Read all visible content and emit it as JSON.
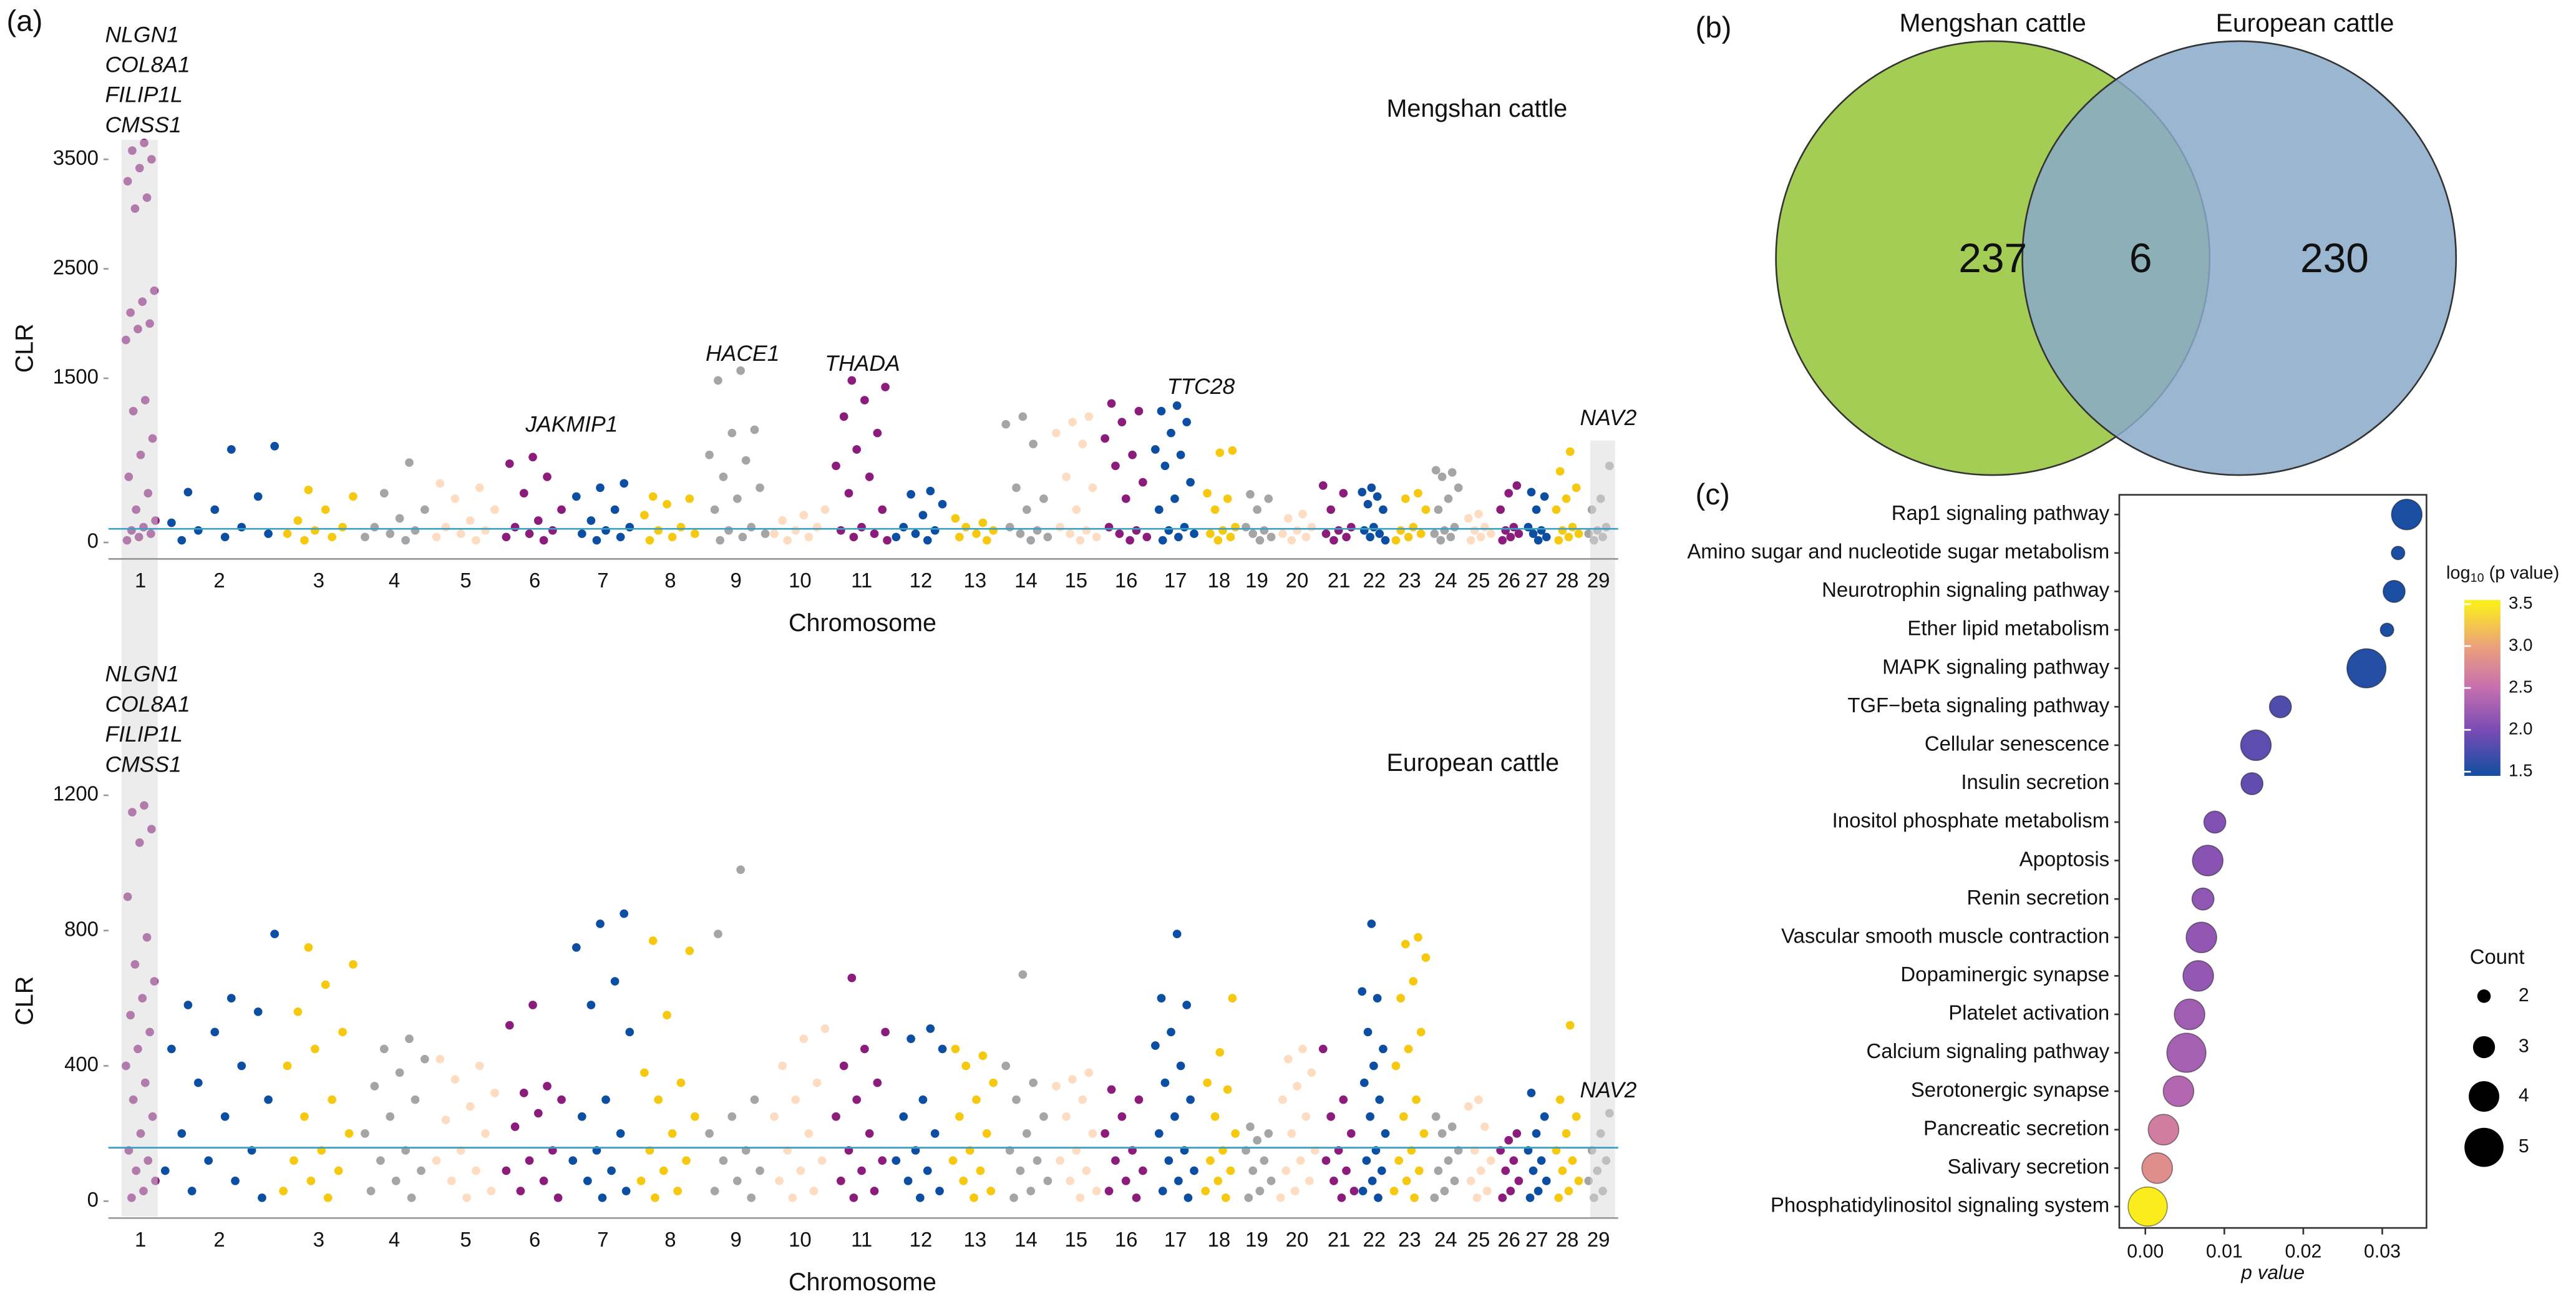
{
  "panel_labels": [
    "(a)",
    "(b)",
    "(c)"
  ],
  "chart_data": [
    {
      "type": "manhattan",
      "title": "Mengshan cattle",
      "xlabel": "Chromosome",
      "ylabel": "CLR",
      "categories": [
        "1",
        "2",
        "3",
        "4",
        "5",
        "6",
        "7",
        "8",
        "9",
        "10",
        "11",
        "12",
        "13",
        "14",
        "15",
        "16",
        "17",
        "18",
        "19",
        "20",
        "21",
        "22",
        "23",
        "24",
        "25",
        "26",
        "27",
        "28",
        "29"
      ],
      "palette": [
        "#8b1c7c",
        "#0b4ea2",
        "#f6c80f",
        "#a5a5a5",
        "#fddcc1"
      ],
      "values": [
        [
          3650,
          3580,
          3500,
          3420,
          3300,
          3150,
          3050,
          2300,
          2200,
          2100,
          2000,
          1950,
          1850,
          1300,
          1200,
          950,
          800,
          600,
          450,
          300,
          200,
          140,
          110,
          80,
          50,
          20
        ],
        [
          880,
          850,
          460,
          420,
          300,
          180,
          140,
          110,
          80,
          50,
          20
        ],
        [
          480,
          420,
          300,
          200,
          140,
          110,
          80,
          50,
          20
        ],
        [
          730,
          450,
          300,
          220,
          140,
          110,
          80,
          50,
          20
        ],
        [
          540,
          500,
          400,
          300,
          200,
          140,
          110,
          80,
          50,
          20
        ],
        [
          780,
          720,
          600,
          450,
          300,
          200,
          140,
          110,
          80,
          50,
          20
        ],
        [
          540,
          500,
          420,
          300,
          200,
          140,
          110,
          80,
          50,
          20
        ],
        [
          420,
          400,
          350,
          250,
          140,
          110,
          80,
          50,
          20
        ],
        [
          1570,
          1480,
          1030,
          1000,
          800,
          750,
          600,
          500,
          400,
          300,
          140,
          110,
          80,
          50,
          20
        ],
        [
          300,
          250,
          200,
          140,
          110,
          80,
          50,
          20
        ],
        [
          1480,
          1420,
          1300,
          1150,
          1000,
          850,
          700,
          600,
          450,
          300,
          140,
          110,
          80,
          50,
          20
        ],
        [
          470,
          440,
          350,
          250,
          140,
          110,
          80,
          50,
          20
        ],
        [
          220,
          180,
          140,
          110,
          80,
          50,
          20
        ],
        [
          1150,
          1080,
          900,
          500,
          400,
          300,
          140,
          110,
          80,
          50,
          20
        ],
        [
          1150,
          1100,
          1000,
          900,
          600,
          500,
          300,
          140,
          110,
          80,
          50,
          20
        ],
        [
          1270,
          1200,
          1100,
          950,
          800,
          700,
          550,
          400,
          140,
          110,
          80,
          50,
          20
        ],
        [
          1250,
          1200,
          1100,
          1000,
          850,
          800,
          700,
          550,
          400,
          300,
          140,
          110,
          80,
          50,
          20
        ],
        [
          840,
          820,
          450,
          400,
          300,
          140,
          110,
          80,
          50,
          20
        ],
        [
          440,
          400,
          300,
          140,
          110,
          80,
          50,
          20
        ],
        [
          260,
          220,
          140,
          110,
          80,
          50,
          20
        ],
        [
          520,
          450,
          300,
          140,
          110,
          80,
          50,
          20
        ],
        [
          500,
          460,
          420,
          350,
          300,
          140,
          110,
          80,
          50,
          20
        ],
        [
          450,
          400,
          300,
          140,
          110,
          80,
          50,
          20
        ],
        [
          660,
          640,
          600,
          500,
          400,
          300,
          140,
          110,
          80,
          50,
          20
        ],
        [
          260,
          220,
          140,
          110,
          80,
          50,
          20
        ],
        [
          520,
          450,
          300,
          140,
          110,
          80,
          50,
          20
        ],
        [
          460,
          420,
          300,
          140,
          110,
          80,
          50,
          20
        ],
        [
          830,
          650,
          500,
          400,
          300,
          140,
          110,
          80,
          50,
          20
        ],
        [
          700,
          400,
          300,
          140,
          110,
          80,
          50,
          20
        ]
      ],
      "ylim": [
        -150,
        3700
      ],
      "yticks": [
        0,
        1500,
        2500,
        3500
      ],
      "threshold": 125,
      "threshold_color": "#3a9fc0",
      "annotations": [
        {
          "lines": [
            "NLGN1",
            "COL8A1",
            "FILIP1L",
            "CMSS1"
          ]
        },
        {
          "lines": [
            "JAKMIP1"
          ]
        },
        {
          "lines": [
            "HACE1"
          ]
        },
        {
          "lines": [
            "THADA"
          ]
        },
        {
          "lines": [
            "TTC28"
          ]
        },
        {
          "lines": [
            "NAV2"
          ]
        }
      ]
    },
    {
      "type": "manhattan",
      "title": "European cattle",
      "xlabel": "Chromosome",
      "ylabel": "CLR",
      "categories": [
        "1",
        "2",
        "3",
        "4",
        "5",
        "6",
        "7",
        "8",
        "9",
        "10",
        "11",
        "12",
        "13",
        "14",
        "15",
        "16",
        "17",
        "18",
        "19",
        "20",
        "21",
        "22",
        "23",
        "24",
        "25",
        "26",
        "27",
        "28",
        "29"
      ],
      "palette": [
        "#8b1c7c",
        "#0b4ea2",
        "#f6c80f",
        "#a5a5a5",
        "#fddcc1"
      ],
      "values": [
        [
          1170,
          1150,
          1100,
          1060,
          900,
          780,
          700,
          650,
          600,
          550,
          500,
          450,
          400,
          350,
          300,
          250,
          200,
          150,
          120,
          90,
          60,
          30,
          10
        ],
        [
          790,
          600,
          580,
          560,
          500,
          450,
          400,
          350,
          300,
          250,
          200,
          150,
          120,
          90,
          60,
          30,
          10
        ],
        [
          750,
          700,
          640,
          560,
          500,
          450,
          400,
          300,
          250,
          200,
          150,
          120,
          90,
          60,
          30,
          10
        ],
        [
          480,
          450,
          420,
          380,
          340,
          300,
          250,
          200,
          150,
          120,
          90,
          60,
          30,
          10
        ],
        [
          420,
          400,
          360,
          320,
          280,
          240,
          200,
          150,
          120,
          90,
          60,
          30,
          10
        ],
        [
          580,
          520,
          340,
          320,
          300,
          260,
          220,
          150,
          120,
          90,
          60,
          30,
          10
        ],
        [
          850,
          820,
          750,
          650,
          580,
          500,
          300,
          250,
          200,
          150,
          120,
          90,
          60,
          30,
          10
        ],
        [
          770,
          740,
          550,
          380,
          350,
          300,
          250,
          200,
          150,
          120,
          90,
          60,
          30,
          10
        ],
        [
          980,
          790,
          300,
          250,
          200,
          150,
          120,
          90,
          60,
          30,
          10
        ],
        [
          510,
          480,
          400,
          350,
          300,
          250,
          200,
          150,
          120,
          90,
          60,
          30,
          10
        ],
        [
          660,
          500,
          450,
          400,
          350,
          300,
          250,
          200,
          150,
          120,
          90,
          60,
          30,
          10
        ],
        [
          510,
          480,
          450,
          300,
          250,
          200,
          150,
          120,
          90,
          60,
          30,
          10
        ],
        [
          450,
          430,
          400,
          350,
          300,
          250,
          200,
          150,
          120,
          90,
          60,
          30,
          10
        ],
        [
          670,
          400,
          350,
          300,
          250,
          200,
          150,
          120,
          90,
          60,
          30,
          10
        ],
        [
          380,
          360,
          340,
          300,
          250,
          200,
          150,
          120,
          90,
          60,
          30,
          10
        ],
        [
          330,
          300,
          250,
          200,
          150,
          120,
          90,
          60,
          30,
          10
        ],
        [
          790,
          600,
          580,
          500,
          460,
          400,
          350,
          300,
          250,
          200,
          150,
          120,
          90,
          60,
          30,
          10
        ],
        [
          600,
          440,
          350,
          330,
          250,
          200,
          150,
          120,
          90,
          60,
          30,
          10
        ],
        [
          220,
          200,
          180,
          150,
          120,
          90,
          60,
          30,
          10
        ],
        [
          450,
          420,
          380,
          340,
          300,
          250,
          200,
          150,
          120,
          90,
          60,
          30,
          10
        ],
        [
          450,
          300,
          250,
          200,
          150,
          120,
          90,
          60,
          30,
          10
        ],
        [
          820,
          620,
          600,
          500,
          450,
          400,
          350,
          300,
          250,
          200,
          150,
          120,
          90,
          60,
          30,
          10
        ],
        [
          780,
          760,
          720,
          650,
          600,
          500,
          450,
          400,
          300,
          250,
          200,
          150,
          120,
          90,
          60,
          30,
          10
        ],
        [
          250,
          220,
          200,
          150,
          120,
          90,
          60,
          30,
          10
        ],
        [
          300,
          280,
          220,
          150,
          120,
          90,
          60,
          30,
          10
        ],
        [
          200,
          180,
          150,
          120,
          90,
          60,
          30,
          10
        ],
        [
          320,
          250,
          200,
          150,
          120,
          90,
          60,
          30,
          10
        ],
        [
          520,
          300,
          250,
          200,
          150,
          120,
          90,
          60,
          30,
          10
        ],
        [
          260,
          200,
          150,
          120,
          90,
          60,
          30,
          10
        ]
      ],
      "ylim": [
        -50,
        1235
      ],
      "yticks": [
        0,
        400,
        800,
        1200
      ],
      "threshold": 158,
      "threshold_color": "#3a9fc0",
      "annotations": [
        {
          "lines": [
            "NLGN1",
            "COL8A1",
            "FILIP1L",
            "CMSS1"
          ]
        },
        {
          "lines": [
            "NAV2"
          ]
        }
      ]
    },
    {
      "type": "venn",
      "sets": [
        {
          "name": "Mengshan cattle",
          "color": "#a4cd55"
        },
        {
          "name": "European cattle",
          "color": "#8aa9c9"
        }
      ],
      "values": [
        237,
        6,
        230
      ]
    },
    {
      "type": "dot",
      "categories": [
        "Rap1 signaling pathway",
        "Amino sugar and nucleotide sugar metabolism",
        "Neurotrophin signaling pathway",
        "Ether lipid metabolism",
        "MAPK signaling pathway",
        "TGF−beta signaling pathway",
        "Cellular senescence",
        "Insulin secretion",
        "Inositol phosphate metabolism",
        "Apoptosis",
        "Renin secretion",
        "Vascular smooth muscle contraction",
        "Dopaminergic synapse",
        "Platelet activation",
        "Calcium signaling pathway",
        "Serotonergic synapse",
        "Pancreatic secretion",
        "Salivary secretion",
        "Phosphatidylinositol signaling system"
      ],
      "values": [
        0.0331,
        0.032,
        0.0315,
        0.0306,
        0.028,
        0.0171,
        0.014,
        0.0135,
        0.0088,
        0.0079,
        0.0073,
        0.0071,
        0.0067,
        0.0056,
        0.0052,
        0.0042,
        0.0023,
        0.0015,
        0.0003
      ],
      "color_values": [
        1.48,
        1.49,
        1.5,
        1.51,
        1.55,
        1.77,
        1.85,
        1.87,
        2.06,
        2.1,
        2.14,
        2.15,
        2.17,
        2.25,
        2.28,
        2.38,
        2.64,
        2.82,
        3.52
      ],
      "sizes": [
        4,
        2,
        3,
        2,
        5,
        3,
        4,
        3,
        3,
        4,
        3,
        4,
        4,
        4,
        5,
        4,
        4,
        4,
        5
      ],
      "xlim": [
        -0.0033,
        0.0356
      ],
      "xticks": [
        {
          "value": 0,
          "label": "0.00"
        },
        {
          "value": 0.01,
          "label": "0.01"
        },
        {
          "value": 0.02,
          "label": "0.02"
        },
        {
          "value": 0.03,
          "label": "0.03"
        }
      ],
      "xlabel": "p value",
      "colorbar_title": {
        "base": "log",
        "sub": "10",
        "rest": " (p value)"
      },
      "clim": [
        1.45,
        3.55
      ],
      "colorscale": [
        [
          1.5,
          "#1a4ea2"
        ],
        [
          2.0,
          "#7a4cb4"
        ],
        [
          2.5,
          "#c66fb0"
        ],
        [
          3.0,
          "#eca17a"
        ],
        [
          3.5,
          "#fbec1e"
        ]
      ],
      "cticks": [
        {
          "value": 1.5,
          "label": "1.5"
        },
        {
          "value": 2,
          "label": "2.0"
        },
        {
          "value": 2.5,
          "label": "2.5"
        },
        {
          "value": 3,
          "label": "3.0"
        },
        {
          "value": 3.5,
          "label": "3.5"
        }
      ],
      "size_title": "Count",
      "size_ticks": [
        2,
        3,
        4,
        5
      ]
    }
  ]
}
